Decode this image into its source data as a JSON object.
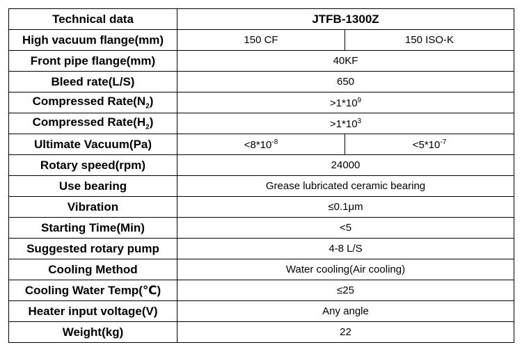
{
  "table": {
    "rows": [
      {
        "label": "Technical data",
        "values": [
          "JTFB-1300Z"
        ]
      },
      {
        "label": "High vacuum flange(mm)",
        "values": [
          "150 CF",
          "150 ISO-K"
        ]
      },
      {
        "label": "Front pipe flange(mm)",
        "values": [
          "40KF"
        ]
      },
      {
        "label": "Bleed rate(L/S)",
        "values": [
          "650"
        ]
      },
      {
        "label": [
          "Compressed Rate(N",
          {
            "sub": "2"
          },
          ")"
        ],
        "values": [
          [
            ">1*10",
            {
              "sup": "9"
            }
          ]
        ]
      },
      {
        "label": [
          "Compressed Rate(H",
          {
            "sub": "2"
          },
          ")"
        ],
        "values": [
          [
            ">1*10",
            {
              "sup": "3"
            }
          ]
        ]
      },
      {
        "label": "Ultimate Vacuum(Pa)",
        "values": [
          [
            "<8*10",
            {
              "sup": "-8"
            }
          ],
          [
            "<5*10",
            {
              "sup": "-7"
            }
          ]
        ]
      },
      {
        "label": "Rotary speed(rpm)",
        "values": [
          "24000"
        ]
      },
      {
        "label": "Use bearing",
        "values": [
          "Grease lubricated ceramic bearing"
        ]
      },
      {
        "label": "Vibration",
        "values": [
          "≤0.1μm"
        ]
      },
      {
        "label": "Starting Time(Min)",
        "values": [
          "<5"
        ]
      },
      {
        "label": "Suggested rotary pump",
        "values": [
          "4-8 L/S"
        ]
      },
      {
        "label": "Cooling Method",
        "values": [
          "Water cooling(Air cooling)"
        ]
      },
      {
        "label": "Cooling Water Temp(℃)",
        "values": [
          "≤25"
        ]
      },
      {
        "label": "Heater input voltage(V)",
        "values": [
          "Any angle"
        ]
      },
      {
        "label": "Weight(kg)",
        "values": [
          "22"
        ]
      }
    ]
  }
}
